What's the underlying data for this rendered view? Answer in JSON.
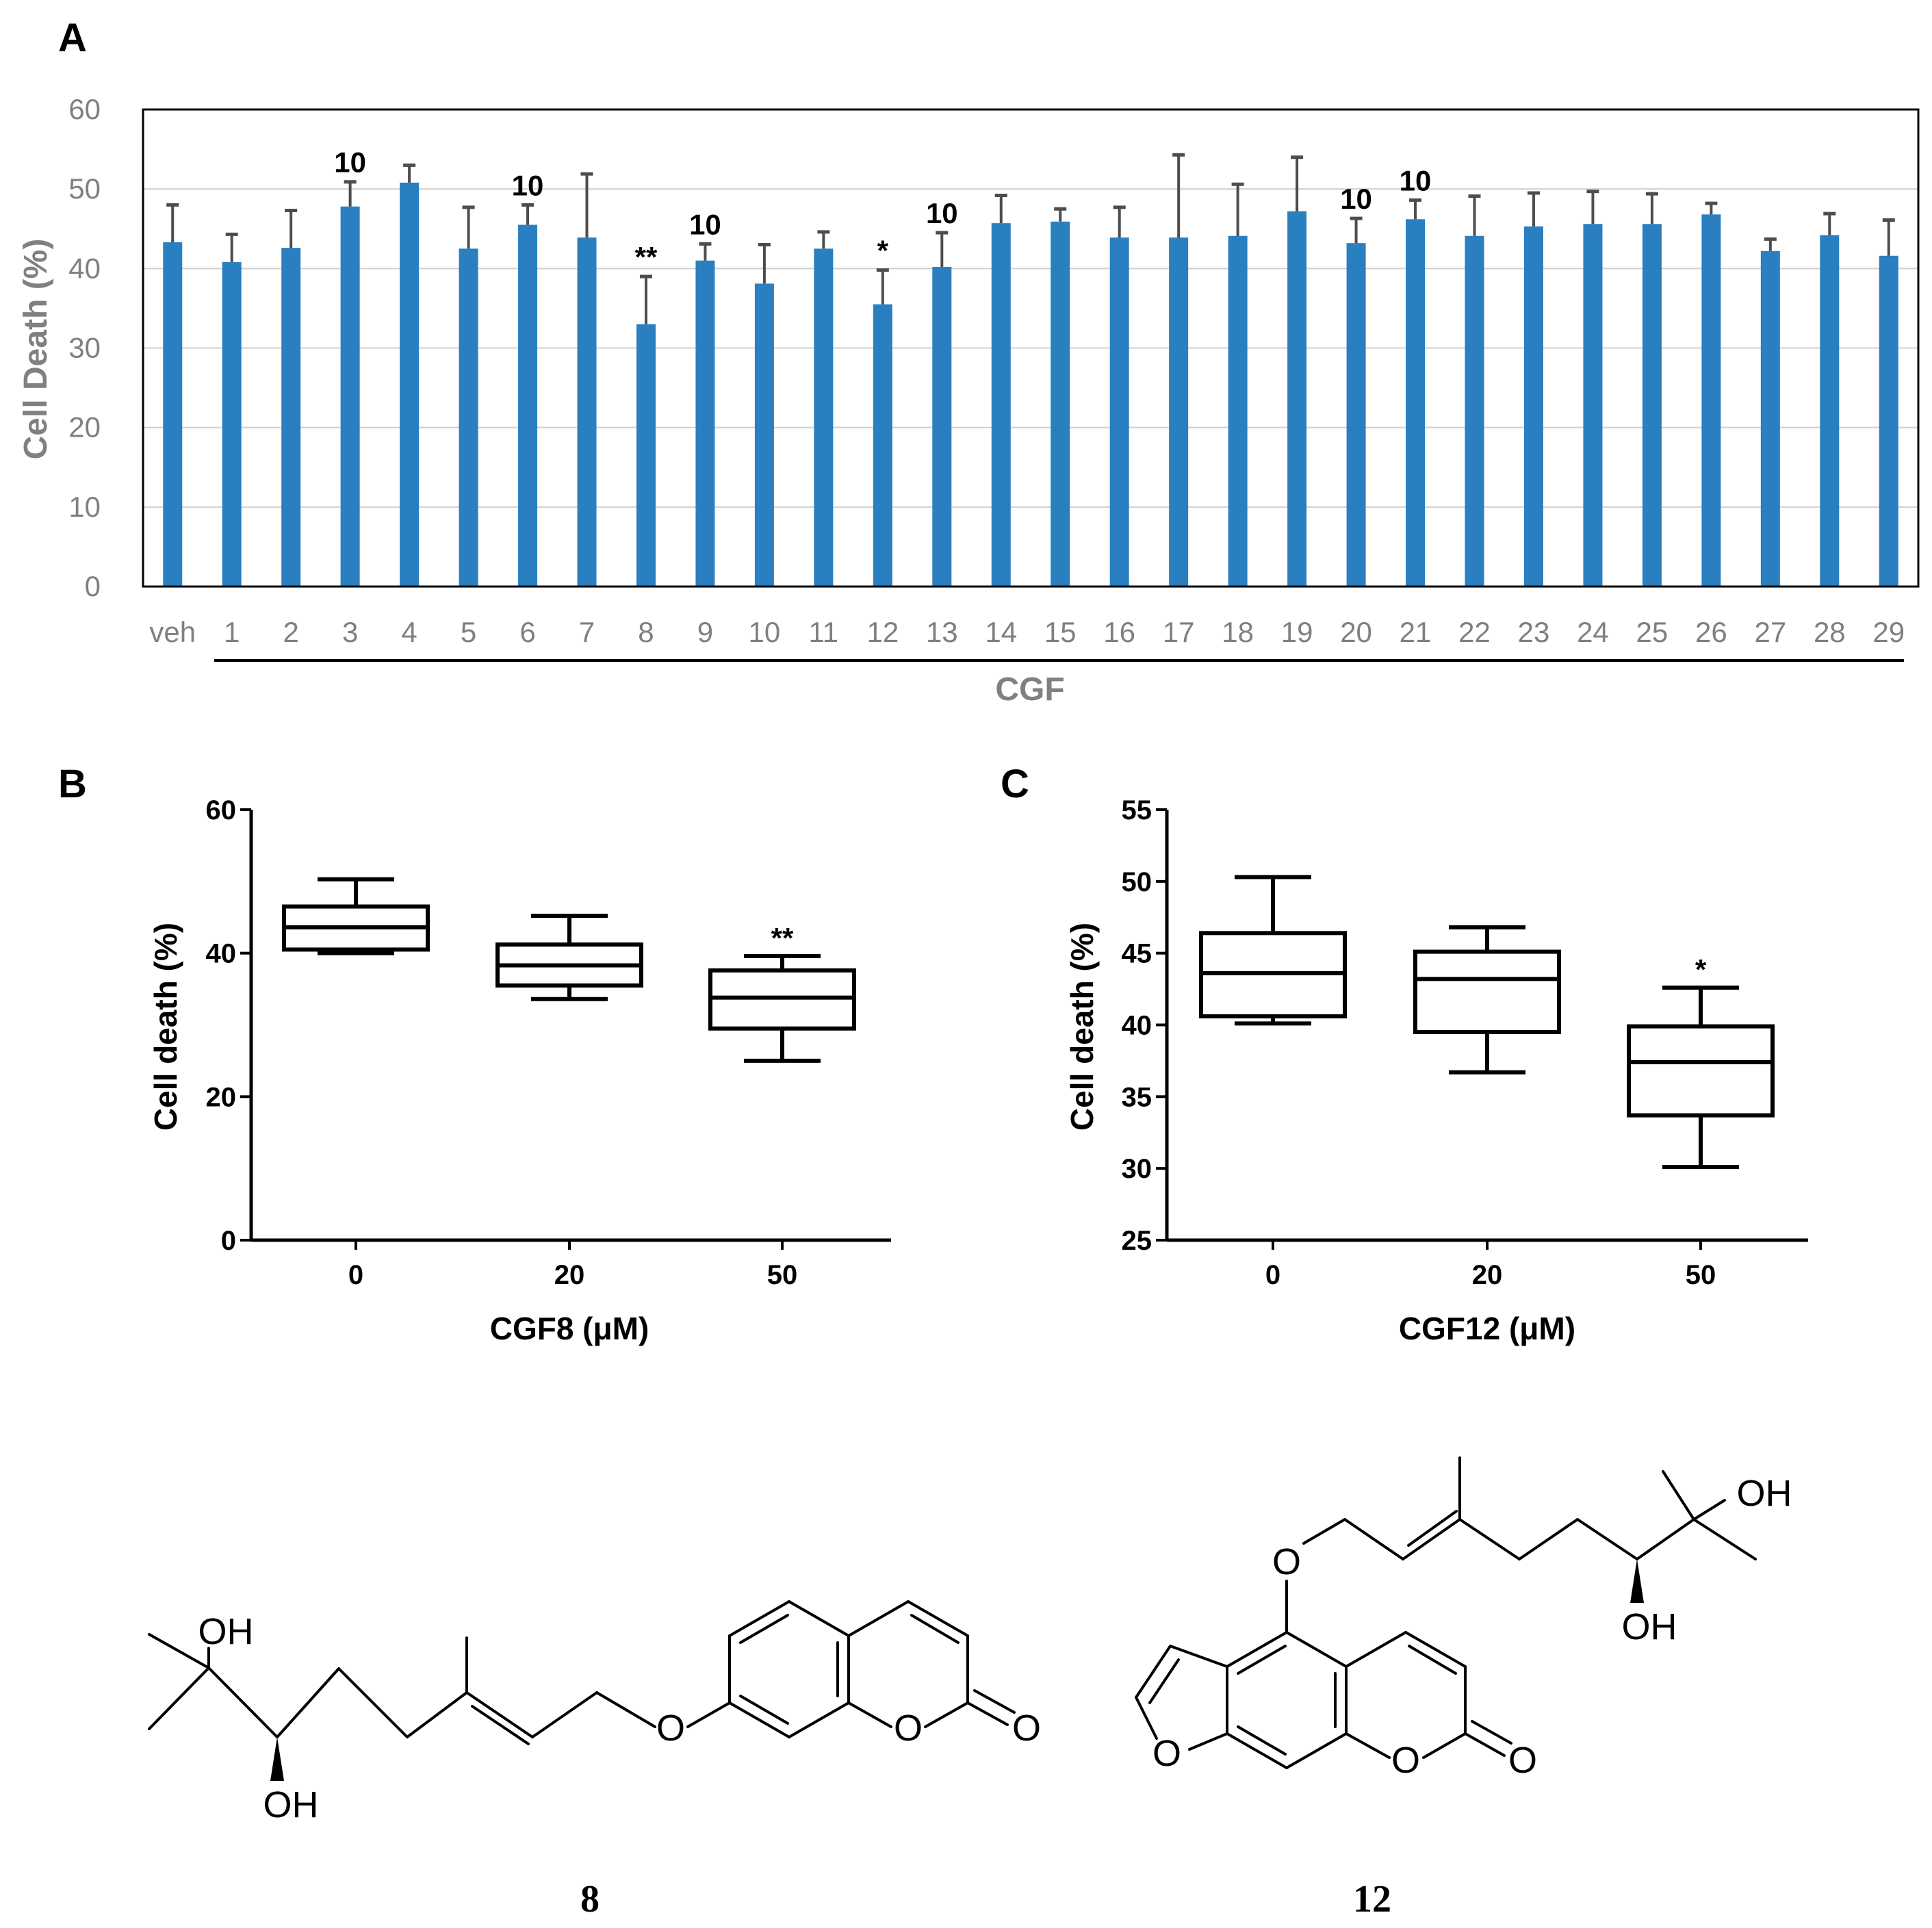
{
  "panels": {
    "a": {
      "letter": "A"
    },
    "b": {
      "letter": "B"
    },
    "c": {
      "letter": "C"
    }
  },
  "colors": {
    "bar": "#2a7fc0",
    "error": "#4d4d4d",
    "axis_gray": "#808080",
    "grid": "#d0d0d0",
    "black": "#000000"
  },
  "chart_data": [
    {
      "id": "A",
      "type": "bar",
      "title": "",
      "xlabel": "CGF",
      "ylabel": "Cell Death (%)",
      "ylim": [
        0,
        60
      ],
      "yticks": [
        0,
        10,
        20,
        30,
        40,
        50,
        60
      ],
      "grid": true,
      "categories": [
        "veh",
        "1",
        "2",
        "3",
        "4",
        "5",
        "6",
        "7",
        "8",
        "9",
        "10",
        "11",
        "12",
        "13",
        "14",
        "15",
        "16",
        "17",
        "18",
        "19",
        "20",
        "21",
        "22",
        "23",
        "24",
        "25",
        "26",
        "27",
        "28",
        "29"
      ],
      "values": [
        43.3,
        40.8,
        42.6,
        47.8,
        50.8,
        42.5,
        45.5,
        43.9,
        33.0,
        41.0,
        38.1,
        42.5,
        35.5,
        40.2,
        45.7,
        45.9,
        43.9,
        43.9,
        44.1,
        47.2,
        43.2,
        46.2,
        44.1,
        45.3,
        45.6,
        45.6,
        46.8,
        42.2,
        44.2,
        41.6
      ],
      "errors": [
        4.7,
        3.5,
        4.7,
        3.1,
        2.2,
        5.2,
        2.5,
        8.0,
        6.0,
        2.1,
        4.9,
        2.1,
        4.3,
        4.3,
        3.5,
        1.6,
        3.8,
        10.4,
        6.5,
        6.8,
        3.1,
        2.4,
        5.0,
        4.2,
        4.1,
        3.8,
        1.4,
        1.5,
        2.7,
        4.5
      ],
      "annotations": [
        {
          "category": "3",
          "text": "10"
        },
        {
          "category": "6",
          "text": "10"
        },
        {
          "category": "8",
          "text": "**"
        },
        {
          "category": "9",
          "text": "10"
        },
        {
          "category": "12",
          "text": "*"
        },
        {
          "category": "13",
          "text": "10"
        },
        {
          "category": "20",
          "text": "10"
        },
        {
          "category": "21",
          "text": "10"
        }
      ]
    },
    {
      "id": "B",
      "type": "box",
      "xlabel": "CGF8 (μM)",
      "ylabel": "Cell death (%)",
      "ylim": [
        0,
        60
      ],
      "yticks": [
        0,
        20,
        40,
        60
      ],
      "categories": [
        "0",
        "20",
        "50"
      ],
      "boxes": [
        {
          "min": 40.0,
          "q1": 40.5,
          "median": 43.6,
          "q3": 46.5,
          "max": 50.3,
          "annotation": ""
        },
        {
          "min": 33.6,
          "q1": 35.5,
          "median": 38.3,
          "q3": 41.2,
          "max": 45.2,
          "annotation": ""
        },
        {
          "min": 25.0,
          "q1": 29.5,
          "median": 33.8,
          "q3": 37.6,
          "max": 39.6,
          "annotation": "**"
        }
      ]
    },
    {
      "id": "C",
      "type": "box",
      "xlabel": "CGF12 (μM)",
      "ylabel": "Cell death (%)",
      "ylim": [
        25,
        55
      ],
      "yticks": [
        25,
        30,
        35,
        40,
        45,
        50,
        55
      ],
      "categories": [
        "0",
        "20",
        "50"
      ],
      "boxes": [
        {
          "min": 40.1,
          "q1": 40.6,
          "median": 43.6,
          "q3": 46.4,
          "max": 50.3,
          "annotation": ""
        },
        {
          "min": 36.7,
          "q1": 39.5,
          "median": 43.2,
          "q3": 45.1,
          "max": 46.8,
          "annotation": ""
        },
        {
          "min": 30.1,
          "q1": 33.7,
          "median": 37.4,
          "q3": 39.9,
          "max": 42.6,
          "annotation": "*"
        }
      ]
    }
  ],
  "structures": {
    "s8": {
      "label": "8",
      "oh_top": "OH",
      "oh_bottom": "OH",
      "o_ether": "O",
      "o_ring": "O",
      "o_carbonyl": "O"
    },
    "s12": {
      "label": "12",
      "oh_top": "OH",
      "oh_bottom": "OH",
      "o_ether": "O",
      "o_furan": "O",
      "o_ring": "O",
      "o_carbonyl": "O"
    }
  }
}
